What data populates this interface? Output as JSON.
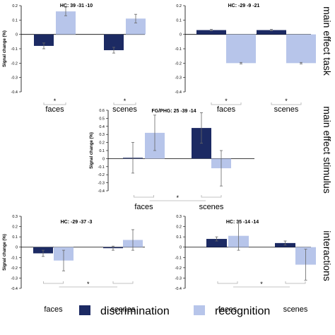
{
  "colors": {
    "discrimination": "#1c2a63",
    "recognition": "#b7c5ea",
    "axis": "#000000",
    "error": "#666666",
    "bracket": "#b0b0b0"
  },
  "legend": {
    "discrimination": "discrimination",
    "recognition": "recognition"
  },
  "side_labels": {
    "task": "main effect task",
    "stimulus": "main effect stimulus",
    "interactions": "interactions"
  },
  "significance_mark": "*",
  "chart_data": [
    {
      "id": "task-hc",
      "type": "bar",
      "title": "HC: 39 -31 -10",
      "ylabel": "Signal change (%)",
      "ylim": [
        -0.4,
        0.2
      ],
      "yticks": [
        0.2,
        0.1,
        0,
        -0.1,
        -0.2,
        -0.3,
        -0.4
      ],
      "categories": [
        "faces",
        "scenes"
      ],
      "series": [
        {
          "name": "discrimination",
          "values": [
            -0.08,
            -0.11
          ],
          "errors": [
            0.02,
            0.02
          ]
        },
        {
          "name": "recognition",
          "values": [
            0.16,
            0.11
          ],
          "errors": [
            0.03,
            0.03
          ]
        }
      ],
      "significance": "within"
    },
    {
      "id": "task-hc-2",
      "type": "bar",
      "title": "HC: -29 -9 -21",
      "ylabel": "",
      "ylim": [
        -0.4,
        0.2
      ],
      "yticks": [
        0.2,
        0.1,
        0,
        -0.1,
        -0.2,
        -0.3,
        -0.4
      ],
      "categories": [
        "faces",
        "scenes"
      ],
      "series": [
        {
          "name": "discrimination",
          "values": [
            0.03,
            0.03
          ],
          "errors": [
            0.005,
            0.005
          ]
        },
        {
          "name": "recognition",
          "values": [
            -0.2,
            -0.2
          ],
          "errors": [
            0.005,
            0.005
          ]
        }
      ],
      "significance": "within"
    },
    {
      "id": "stimulus-fg-phg",
      "type": "bar",
      "title": "FG/PHG: 25 -39 -14",
      "ylabel": "Signal change (%)",
      "ylim": [
        -0.4,
        0.6
      ],
      "yticks": [
        0.6,
        0.5,
        0.4,
        0.3,
        0.2,
        0.1,
        0,
        -0.1,
        -0.2,
        -0.3,
        -0.4
      ],
      "categories": [
        "faces",
        "scenes"
      ],
      "series": [
        {
          "name": "discrimination",
          "values": [
            0.01,
            0.38
          ],
          "errors": [
            0.19,
            0.19
          ]
        },
        {
          "name": "recognition",
          "values": [
            0.32,
            -0.12
          ],
          "errors": [
            0.22,
            0.22
          ]
        }
      ],
      "significance": "between"
    },
    {
      "id": "interaction-hc",
      "type": "bar",
      "title": "HC: -29 -37 -3",
      "ylabel": "Signal change (%)",
      "ylim": [
        -0.4,
        0.3
      ],
      "yticks": [
        0.3,
        0.2,
        0.1,
        0,
        -0.1,
        -0.2,
        -0.3,
        -0.4
      ],
      "categories": [
        "faces",
        "scenes"
      ],
      "series": [
        {
          "name": "discrimination",
          "values": [
            -0.06,
            -0.01
          ],
          "errors": [
            0.03,
            0.02
          ]
        },
        {
          "name": "recognition",
          "values": [
            -0.13,
            0.07
          ],
          "errors": [
            0.1,
            0.1
          ]
        }
      ],
      "significance": "between"
    },
    {
      "id": "interaction-hc-2",
      "type": "bar",
      "title": "HC: 35 -14 -14",
      "ylabel": "",
      "ylim": [
        -0.4,
        0.3
      ],
      "yticks": [
        0.3,
        0.2,
        0.1,
        0,
        -0.1,
        -0.2,
        -0.3,
        -0.4
      ],
      "categories": [
        "faces",
        "scenes"
      ],
      "series": [
        {
          "name": "discrimination",
          "values": [
            0.08,
            0.04
          ],
          "errors": [
            0.02,
            0.02
          ]
        },
        {
          "name": "recognition",
          "values": [
            0.11,
            -0.17
          ],
          "errors": [
            0.14,
            0.15
          ]
        }
      ],
      "significance": "between"
    }
  ]
}
